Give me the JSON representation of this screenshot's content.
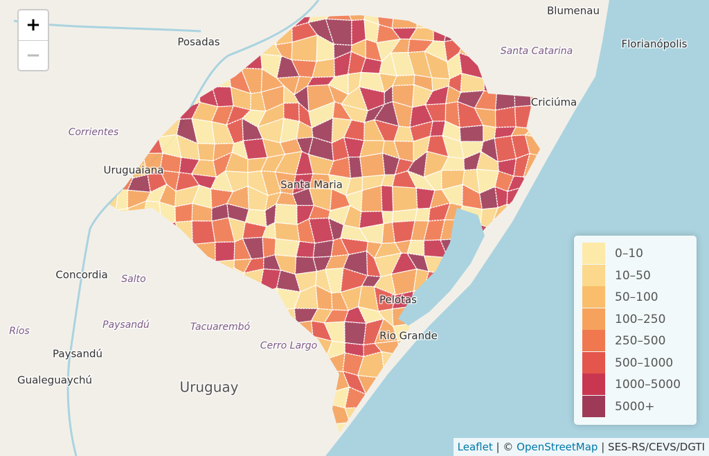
{
  "zoom": {
    "in": "+",
    "out": "−"
  },
  "places": [
    "Blumenau",
    "Florianópolis",
    "Santa Catarina",
    "Posadas",
    "Corrientes",
    "Uruguaiana",
    "Santa Maria",
    "Criciúma",
    "Concordia",
    "Salto",
    "Paysandú",
    "Tacuarembó",
    "Cerro Largo",
    "Paysandú",
    "Gualeguaychú",
    "Uruguay",
    "Ríos",
    "Pelotas",
    "Rio Grande"
  ],
  "legend": [
    {
      "label": "0–10",
      "color": "#fdeaa8"
    },
    {
      "label": "10–50",
      "color": "#fbd88b"
    },
    {
      "label": "50–100",
      "color": "#f9bd6c"
    },
    {
      "label": "100–250",
      "color": "#f6a25d"
    },
    {
      "label": "250–500",
      "color": "#f0784f"
    },
    {
      "label": "500–1000",
      "color": "#e4554b"
    },
    {
      "label": "1000–5000",
      "color": "#c8364f"
    },
    {
      "label": "5000+",
      "color": "#9e3a57"
    }
  ],
  "attribution": {
    "leaflet": "Leaflet",
    "sep": "| ©",
    "osm": "OpenStreetMap",
    "source": "| SES-RS/CEVS/DGTI"
  }
}
